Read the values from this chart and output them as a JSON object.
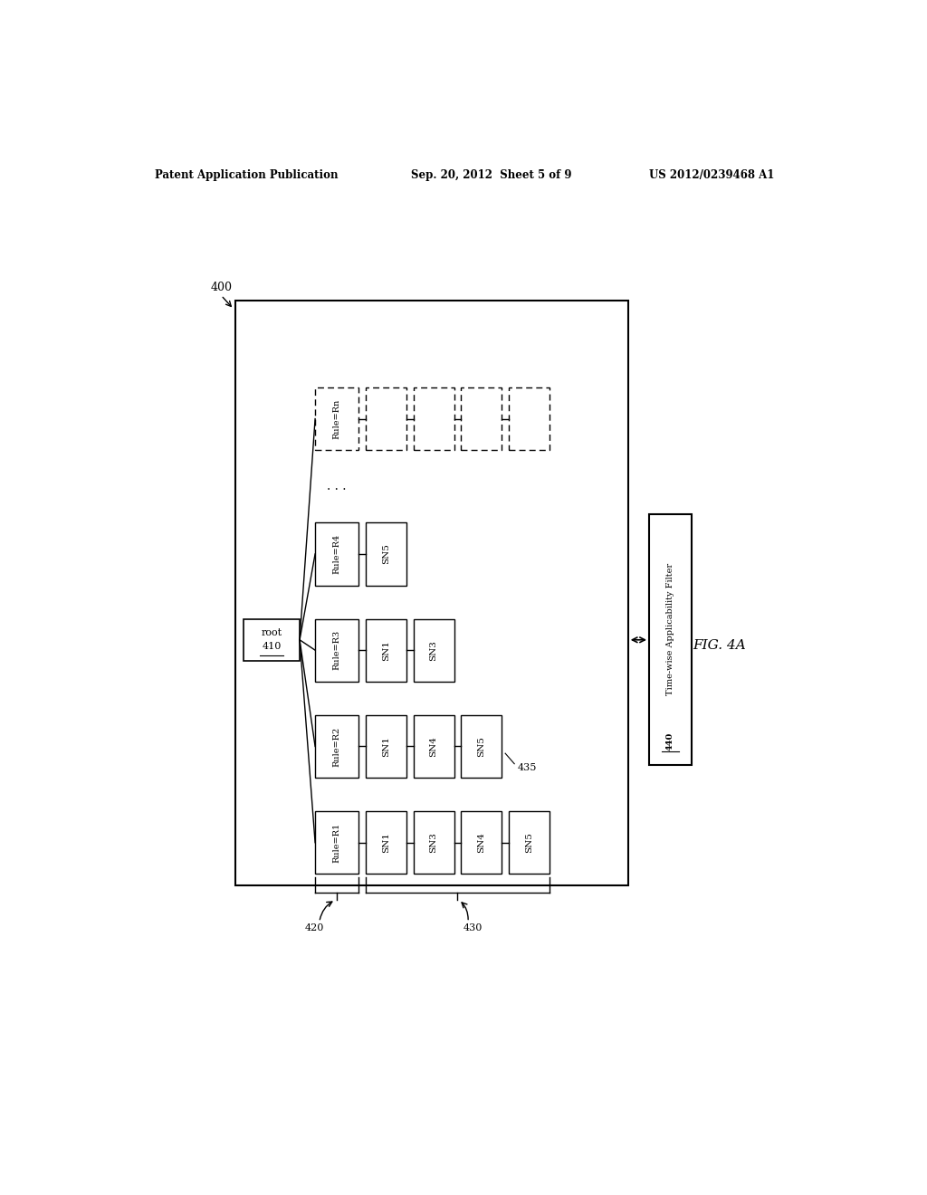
{
  "header_left": "Patent Application Publication",
  "header_mid": "Sep. 20, 2012  Sheet 5 of 9",
  "header_right": "US 2012/0239468 A1",
  "fig_label": "FIG. 4A",
  "diagram_label": "400",
  "filter_label": "Time-wise Applicability Filter",
  "filter_num": "440",
  "label_420": "420",
  "label_430": "430",
  "label_435": "435",
  "rows": [
    {
      "rule": "Rule=R1",
      "nodes": [
        "SN1",
        "SN3",
        "SN4",
        "SN5"
      ],
      "dashed": false
    },
    {
      "rule": "Rule=R2",
      "nodes": [
        "SN1",
        "SN4",
        "SN5"
      ],
      "dashed": false
    },
    {
      "rule": "Rule=R3",
      "nodes": [
        "SN1",
        "SN3"
      ],
      "dashed": false
    },
    {
      "rule": "Rule=R4",
      "nodes": [
        "SN5"
      ],
      "dashed": false
    },
    {
      "rule": "Rule=Rn",
      "nodes": [
        "",
        "",
        "",
        ""
      ],
      "dashed": true
    }
  ],
  "bg_color": "#ffffff",
  "text_color": "#000000"
}
